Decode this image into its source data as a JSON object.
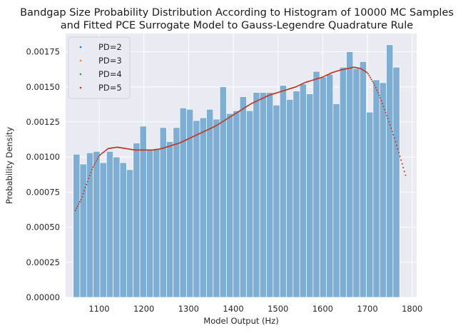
{
  "chart_data": {
    "type": "bar",
    "title": "Bandgap Size Probability Distribution According to Histogram of 10000 MC Samples",
    "subtitle": "and Fitted PCE Surrogate Model to Gauss-Legendre Quadrature Rule",
    "xlabel": "Model Output (Hz)",
    "ylabel": "Probability Density",
    "xlim": [
      1025,
      1810
    ],
    "ylim": [
      0,
      0.00188
    ],
    "xticks": [
      1100,
      1200,
      1300,
      1400,
      1500,
      1600,
      1700,
      1800
    ],
    "xtick_labels": [
      "1100",
      "1200",
      "1300",
      "1400",
      "1500",
      "1600",
      "1700",
      "1800"
    ],
    "yticks": [
      0,
      0.00025,
      0.0005,
      0.00075,
      0.001,
      0.00125,
      0.0015,
      0.00175
    ],
    "ytick_labels": [
      "0.00000",
      "0.00025",
      "0.00050",
      "0.00075",
      "0.00100",
      "0.00125",
      "0.00150",
      "0.00175"
    ],
    "grid": true,
    "legend_position": "top-left",
    "histogram": {
      "bin_start": 1042,
      "bin_width": 14.9,
      "color": "#7eaed3",
      "values": [
        0.00102,
        0.00095,
        0.00103,
        0.00104,
        0.00096,
        0.00104,
        0.001,
        0.00096,
        0.00091,
        0.0011,
        0.00122,
        0.00105,
        0.00106,
        0.00121,
        0.00111,
        0.00121,
        0.00135,
        0.00134,
        0.00126,
        0.00128,
        0.00134,
        0.00127,
        0.0015,
        0.00131,
        0.00133,
        0.00143,
        0.00133,
        0.00146,
        0.00146,
        0.00146,
        0.00137,
        0.00151,
        0.00141,
        0.00147,
        0.00152,
        0.00145,
        0.00161,
        0.00157,
        0.00159,
        0.00138,
        0.00164,
        0.00175,
        0.00163,
        0.00168,
        0.00132,
        0.00155,
        0.00153,
        0.0018,
        0.00164
      ]
    },
    "curve": {
      "x": [
        1047,
        1060,
        1070,
        1085,
        1100,
        1120,
        1140,
        1160,
        1180,
        1200,
        1220,
        1240,
        1260,
        1280,
        1300,
        1320,
        1340,
        1360,
        1380,
        1400,
        1420,
        1440,
        1460,
        1480,
        1500,
        1520,
        1540,
        1560,
        1580,
        1600,
        1620,
        1640,
        1655,
        1670,
        1685,
        1700,
        1715,
        1730,
        1745,
        1760,
        1775,
        1785
      ],
      "y": [
        0.00062,
        0.0007,
        0.00079,
        0.00092,
        0.00101,
        0.00106,
        0.00107,
        0.00106,
        0.00105,
        0.00105,
        0.00105,
        0.00106,
        0.00108,
        0.0011,
        0.00113,
        0.00116,
        0.00119,
        0.00122,
        0.00126,
        0.0013,
        0.00134,
        0.00138,
        0.00141,
        0.00144,
        0.00146,
        0.00148,
        0.0015,
        0.00153,
        0.00155,
        0.00157,
        0.0016,
        0.00162,
        0.00163,
        0.00164,
        0.00163,
        0.0016,
        0.00152,
        0.00141,
        0.00128,
        0.00114,
        0.00098,
        0.00087
      ]
    },
    "series": [
      {
        "name": "PD=2",
        "color": "#1f77b4",
        "offset": 0
      },
      {
        "name": "PD=3",
        "color": "#ff7f0e",
        "offset": 0
      },
      {
        "name": "PD=4",
        "color": "#2ca02c",
        "offset": 0
      },
      {
        "name": "PD=5",
        "color": "#d62728",
        "offset": 0
      }
    ]
  }
}
